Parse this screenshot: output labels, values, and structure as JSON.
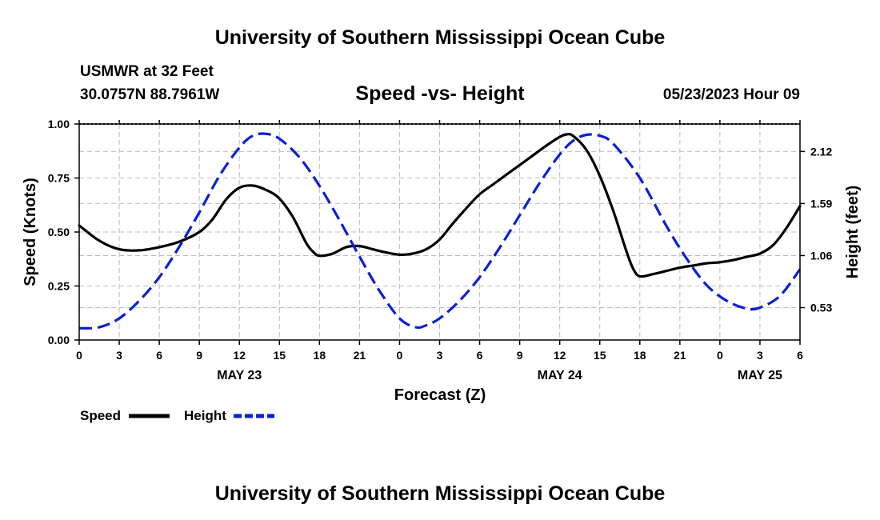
{
  "header": {
    "title": "University of Southern Mississippi Ocean Cube",
    "station": "USMWR at 32 Feet",
    "location": "30.0757N  88.7961W",
    "date": "05/23/2023 Hour 09"
  },
  "footer": {
    "title": "University of Southern Mississippi Ocean Cube"
  },
  "chart_data": {
    "type": "line",
    "title": "Speed -vs- Height",
    "xlabel": "Forecast (Z)",
    "ylabel_left": "Speed (Knots)",
    "ylabel_right": "Height (feet)",
    "xlim": [
      0,
      54
    ],
    "ylim_left": [
      0,
      1
    ],
    "ylim_right": [
      0.2,
      2.4
    ],
    "x_tick_values": [
      0,
      3,
      6,
      9,
      12,
      15,
      18,
      21,
      24,
      27,
      30,
      33,
      36,
      39,
      42,
      45,
      48,
      51,
      54
    ],
    "x_tick_labels": [
      "0",
      "3",
      "6",
      "9",
      "12",
      "15",
      "18",
      "21",
      "0",
      "3",
      "6",
      "9",
      "12",
      "15",
      "18",
      "21",
      "0",
      "3",
      "6"
    ],
    "date_labels": [
      {
        "x": 12,
        "label": "MAY 23"
      },
      {
        "x": 36,
        "label": "MAY 24"
      },
      {
        "x": 51,
        "label": "MAY 25"
      }
    ],
    "y_left_ticks": [
      {
        "value": 0,
        "label": "0.00"
      },
      {
        "value": 0.25,
        "label": "0.25"
      },
      {
        "value": 0.5,
        "label": "0.50"
      },
      {
        "value": 0.75,
        "label": "0.75"
      },
      {
        "value": 1,
        "label": "1.00"
      }
    ],
    "y_right_ticks": [
      {
        "value": 0.53,
        "label": "0.53"
      },
      {
        "value": 1.06,
        "label": "1.06"
      },
      {
        "value": 1.59,
        "label": "1.59"
      },
      {
        "value": 2.12,
        "label": "2.12"
      }
    ],
    "grid": true,
    "legend_position": "bottom-left",
    "series": [
      {
        "name": "Speed",
        "axis": "left",
        "color": "#000000",
        "dash": "solid",
        "x": [
          0,
          1.5,
          3,
          4.5,
          6,
          7.5,
          9,
          10,
          11,
          12,
          13,
          14,
          15,
          16,
          17,
          17.5,
          18,
          19,
          20,
          21,
          22,
          23,
          24,
          25,
          26,
          27,
          28,
          29,
          30,
          31,
          32,
          33,
          34,
          35,
          36,
          36.5,
          37,
          38,
          39,
          40,
          41,
          41.5,
          42,
          43,
          44,
          45,
          46,
          47,
          48,
          49,
          50,
          51,
          52,
          53,
          54
        ],
        "values": [
          0.53,
          0.46,
          0.42,
          0.415,
          0.43,
          0.455,
          0.5,
          0.56,
          0.65,
          0.705,
          0.715,
          0.695,
          0.655,
          0.57,
          0.45,
          0.41,
          0.39,
          0.4,
          0.43,
          0.435,
          0.42,
          0.405,
          0.395,
          0.4,
          0.42,
          0.465,
          0.54,
          0.61,
          0.675,
          0.72,
          0.765,
          0.81,
          0.855,
          0.9,
          0.94,
          0.952,
          0.945,
          0.88,
          0.76,
          0.6,
          0.41,
          0.33,
          0.295,
          0.305,
          0.32,
          0.335,
          0.345,
          0.355,
          0.36,
          0.37,
          0.385,
          0.4,
          0.44,
          0.52,
          0.62
        ]
      },
      {
        "name": "Height",
        "axis": "right",
        "color": "#0a1fd6",
        "dash": "dashed",
        "x": [
          0,
          1.5,
          3,
          4.5,
          6,
          7.5,
          9,
          10.5,
          12,
          13,
          14,
          15,
          16.5,
          18,
          19.5,
          21,
          22.5,
          24,
          25.2,
          26,
          27,
          28.5,
          30,
          31.5,
          33,
          34.5,
          36,
          37,
          38,
          39,
          40,
          42,
          44,
          45.5,
          47,
          48.5,
          50,
          51,
          52.5,
          54
        ],
        "values": [
          0.32,
          0.33,
          0.42,
          0.6,
          0.84,
          1.15,
          1.5,
          1.87,
          2.16,
          2.28,
          2.3,
          2.25,
          2.06,
          1.77,
          1.42,
          1.05,
          0.7,
          0.42,
          0.33,
          0.35,
          0.42,
          0.6,
          0.84,
          1.14,
          1.47,
          1.8,
          2.09,
          2.23,
          2.29,
          2.28,
          2.2,
          1.85,
          1.36,
          1.03,
          0.76,
          0.6,
          0.52,
          0.53,
          0.65,
          0.92
        ]
      }
    ]
  }
}
